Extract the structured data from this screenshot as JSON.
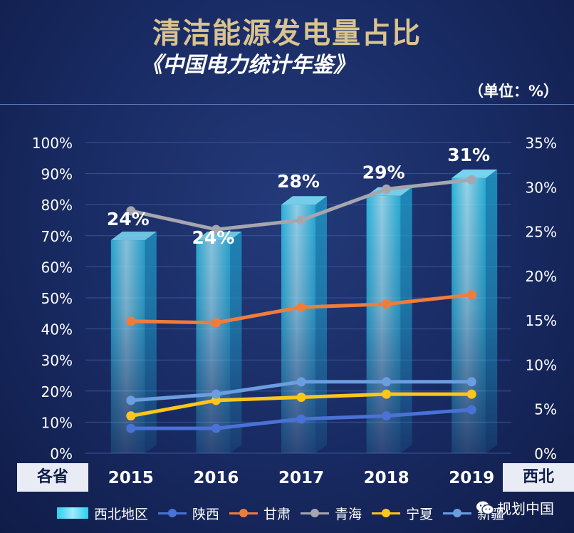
{
  "header": {
    "title": "清洁能源发电量占比",
    "subtitle": "《中国电力统计年鉴》",
    "unit": "（单位：%）"
  },
  "corner_labels": {
    "left": "各省",
    "right": "西北"
  },
  "watermark": {
    "text": "规划中国",
    "icon": "wechat-icon"
  },
  "chart_data": {
    "type": "bar",
    "categories": [
      "2015",
      "2016",
      "2017",
      "2018",
      "2019"
    ],
    "left_axis": {
      "ticks": [
        "0%",
        "10%",
        "20%",
        "30%",
        "40%",
        "50%",
        "60%",
        "70%",
        "80%",
        "90%",
        "100%"
      ],
      "ylim": [
        0,
        100
      ]
    },
    "right_axis": {
      "ticks": [
        "0%",
        "5%",
        "10%",
        "15%",
        "20%",
        "25%",
        "30%",
        "35%"
      ],
      "ylim": [
        0,
        35
      ]
    },
    "bar_series": {
      "name": "西北地区",
      "axis": "right",
      "values": [
        24,
        24,
        28,
        29,
        31
      ],
      "data_labels": [
        "24%",
        "24%",
        "28%",
        "29%",
        "31%"
      ],
      "color": "#2ad0ee"
    },
    "line_series": [
      {
        "name": "陕西",
        "axis": "left",
        "color": "#4a72d6",
        "values": [
          8,
          8,
          11,
          12,
          14
        ]
      },
      {
        "name": "甘肃",
        "axis": "left",
        "color": "#ee7d3c",
        "values": [
          42.5,
          42,
          47,
          48,
          51
        ]
      },
      {
        "name": "青海",
        "axis": "left",
        "color": "#a6a6ae",
        "values": [
          78,
          72,
          75,
          85,
          88
        ]
      },
      {
        "name": "宁夏",
        "axis": "left",
        "color": "#ffc61a",
        "values": [
          12,
          17,
          18,
          19,
          19
        ]
      },
      {
        "name": "新疆",
        "axis": "left",
        "color": "#6a9ee0",
        "values": [
          17,
          19,
          23,
          23,
          23
        ]
      }
    ],
    "grid": true,
    "legend_position": "bottom"
  }
}
